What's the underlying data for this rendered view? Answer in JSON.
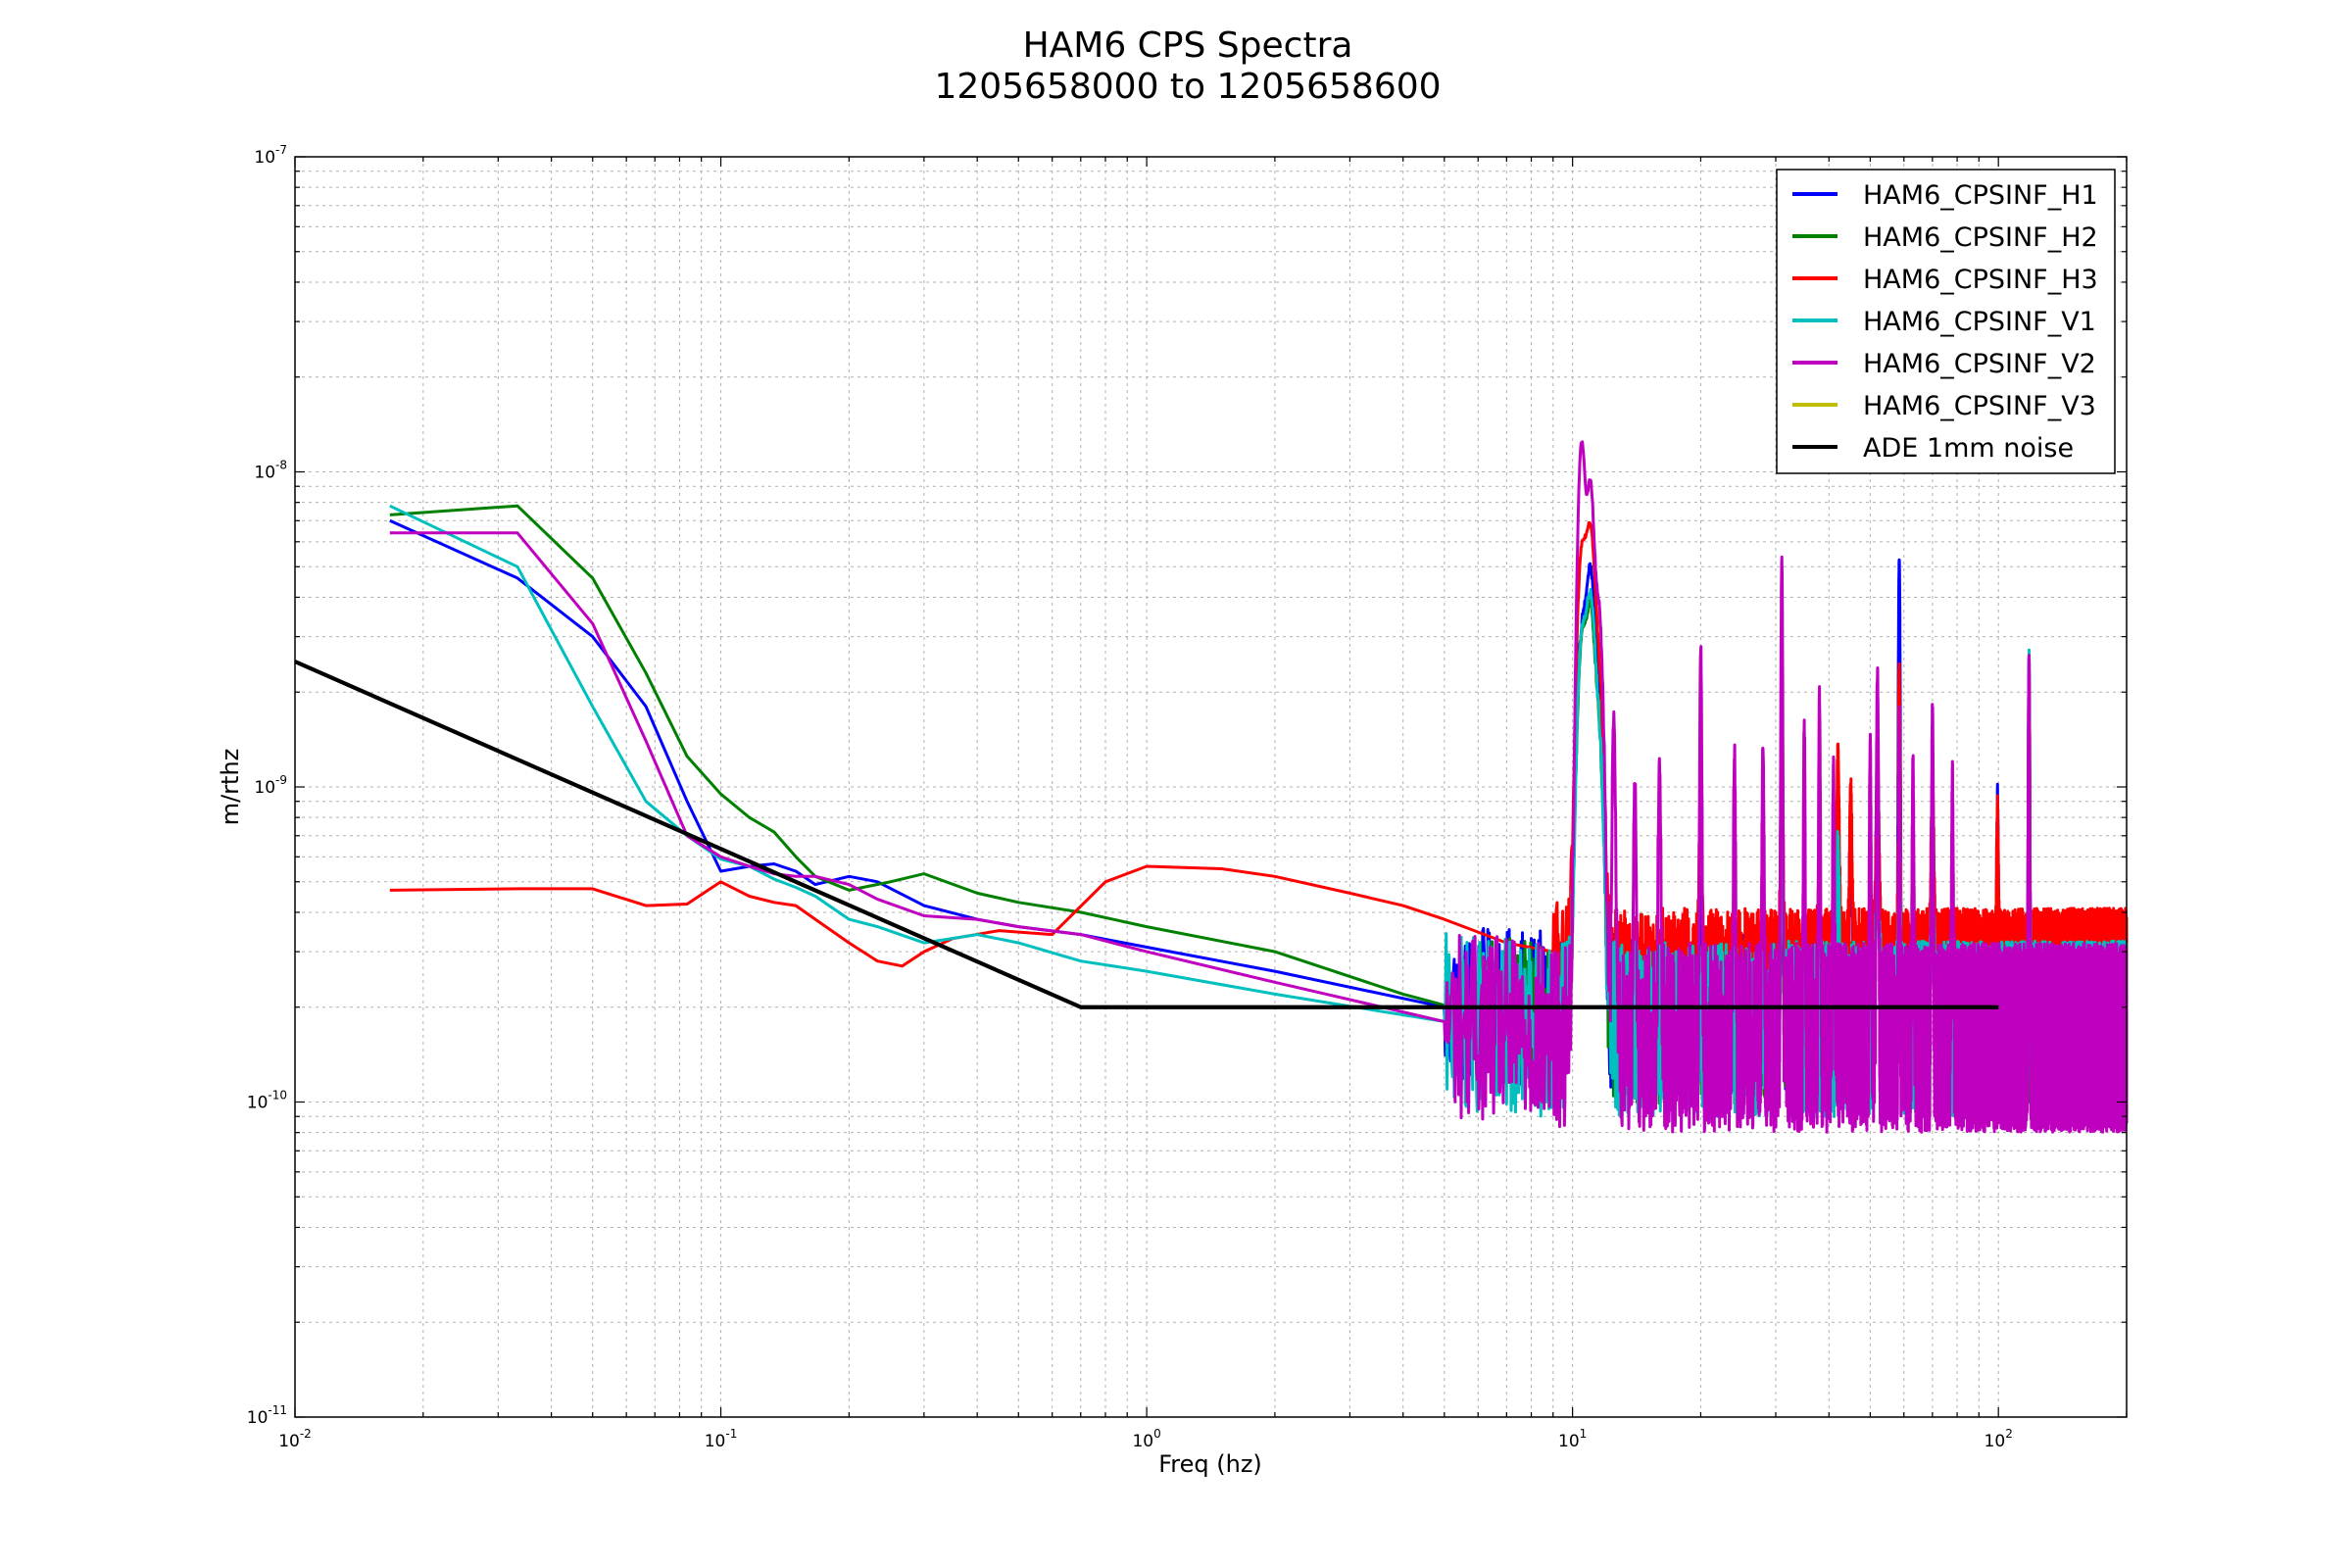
{
  "chart_data": {
    "type": "line",
    "title": "HAM6 CPS Spectra",
    "subtitle": "1205658000 to 1205658600",
    "xlabel": "Freq (hz)",
    "ylabel": "m/rthz",
    "xscale": "log",
    "yscale": "log",
    "xlim": [
      0.01,
      200
    ],
    "ylim": [
      1e-11,
      1e-07
    ],
    "grid": true,
    "legend": "top-right",
    "x_ticks": [
      {
        "base": "10",
        "exp": "-2",
        "value": 0.01
      },
      {
        "base": "10",
        "exp": "-1",
        "value": 0.1
      },
      {
        "base": "10",
        "exp": "0",
        "value": 1
      },
      {
        "base": "10",
        "exp": "1",
        "value": 10
      },
      {
        "base": "10",
        "exp": "2",
        "value": 100
      }
    ],
    "y_ticks": [
      {
        "base": "10",
        "exp": "-11",
        "value": 1e-11
      },
      {
        "base": "10",
        "exp": "-10",
        "value": 1e-10
      },
      {
        "base": "10",
        "exp": "-9",
        "value": 1e-09
      },
      {
        "base": "10",
        "exp": "-8",
        "value": 1e-08
      },
      {
        "base": "10",
        "exp": "-7",
        "value": 1e-07
      }
    ],
    "series": [
      {
        "name": "HAM6_CPSINF_H1",
        "color": "#0000ff",
        "base": 1.9e-10,
        "noise": 0.26,
        "h3like": false,
        "points": [
          [
            0.0167,
            7e-09
          ],
          [
            0.0333,
            4.6e-09
          ],
          [
            0.05,
            3e-09
          ],
          [
            0.0667,
            1.8e-09
          ],
          [
            0.0833,
            9e-10
          ],
          [
            0.1,
            5.4e-10
          ],
          [
            0.1167,
            5.6e-10
          ],
          [
            0.1333,
            5.7e-10
          ],
          [
            0.15,
            5.4e-10
          ],
          [
            0.1667,
            4.9e-10
          ],
          [
            0.2,
            5.2e-10
          ],
          [
            0.2333,
            5e-10
          ],
          [
            0.3,
            4.2e-10
          ],
          [
            0.4,
            3.8e-10
          ],
          [
            0.5,
            3.6e-10
          ],
          [
            0.7,
            3.4e-10
          ],
          [
            1.0,
            3.1e-10
          ],
          [
            2.0,
            2.6e-10
          ],
          [
            5.0,
            2e-10
          ]
        ],
        "peaks": [
          [
            10.5,
            2.6e-09,
            0.03
          ],
          [
            11.0,
            4.4e-09,
            0.03
          ],
          [
            11.5,
            1.5e-09,
            0.03
          ],
          [
            20.0,
            3e-10,
            0.01
          ],
          [
            31.0,
            4e-10,
            0.008
          ],
          [
            42.0,
            7e-10,
            0.008
          ],
          [
            45.0,
            6.5e-10,
            0.008
          ],
          [
            52.0,
            9e-10,
            0.01
          ],
          [
            58.5,
            5.1e-09,
            0.005
          ],
          [
            70.0,
            8e-10,
            0.008
          ],
          [
            99.5,
            7e-10,
            0.005
          ],
          [
            118,
            2.3e-09,
            0.004
          ]
        ]
      },
      {
        "name": "HAM6_CPSINF_H2",
        "color": "#008000",
        "base": 1.8e-10,
        "noise": 0.26,
        "h3like": false,
        "points": [
          [
            0.0167,
            7.3e-09
          ],
          [
            0.0333,
            7.8e-09
          ],
          [
            0.05,
            4.6e-09
          ],
          [
            0.0667,
            2.3e-09
          ],
          [
            0.0833,
            1.25e-09
          ],
          [
            0.1,
            9.5e-10
          ],
          [
            0.1167,
            8e-10
          ],
          [
            0.1333,
            7.2e-10
          ],
          [
            0.15,
            6e-10
          ],
          [
            0.1667,
            5.2e-10
          ],
          [
            0.2,
            4.7e-10
          ],
          [
            0.25,
            5e-10
          ],
          [
            0.3,
            5.3e-10
          ],
          [
            0.4,
            4.6e-10
          ],
          [
            0.5,
            4.3e-10
          ],
          [
            0.7,
            4e-10
          ],
          [
            1.0,
            3.6e-10
          ],
          [
            2.0,
            3e-10
          ],
          [
            4.0,
            2.2e-10
          ],
          [
            6.0,
            1.9e-10
          ]
        ],
        "peaks": [
          [
            10.5,
            2.5e-09,
            0.03
          ],
          [
            11.0,
            3.3e-09,
            0.03
          ],
          [
            11.5,
            1.3e-09,
            0.03
          ],
          [
            31.0,
            3.6e-10,
            0.008
          ],
          [
            52.0,
            6.5e-10,
            0.01
          ],
          [
            58.5,
            1.4e-09,
            0.005
          ],
          [
            70.0,
            6.5e-10,
            0.008
          ]
        ]
      },
      {
        "name": "HAM6_CPSINF_H3",
        "color": "#ff0000",
        "base": 2.6e-10,
        "noise": 0.2,
        "h3like": true,
        "points": [
          [
            0.0167,
            4.7e-10
          ],
          [
            0.0333,
            4.75e-10
          ],
          [
            0.05,
            4.75e-10
          ],
          [
            0.0667,
            4.2e-10
          ],
          [
            0.0833,
            4.25e-10
          ],
          [
            0.1,
            5e-10
          ],
          [
            0.1167,
            4.5e-10
          ],
          [
            0.1333,
            4.3e-10
          ],
          [
            0.15,
            4.2e-10
          ],
          [
            0.1667,
            3.8e-10
          ],
          [
            0.2,
            3.2e-10
          ],
          [
            0.2333,
            2.8e-10
          ],
          [
            0.2667,
            2.7e-10
          ],
          [
            0.3,
            3e-10
          ],
          [
            0.35,
            3.3e-10
          ],
          [
            0.45,
            3.5e-10
          ],
          [
            0.6,
            3.4e-10
          ],
          [
            0.8,
            5e-10
          ],
          [
            1.0,
            5.6e-10
          ],
          [
            1.5,
            5.5e-10
          ],
          [
            2.0,
            5.2e-10
          ],
          [
            3.0,
            4.6e-10
          ],
          [
            4.0,
            4.2e-10
          ],
          [
            5.0,
            3.8e-10
          ],
          [
            7.0,
            3.2e-10
          ],
          [
            9.0,
            3e-10
          ]
        ],
        "peaks": [
          [
            10.5,
            5e-09,
            0.03
          ],
          [
            11.0,
            6e-09,
            0.03
          ],
          [
            11.5,
            2e-09,
            0.03
          ],
          [
            20.0,
            5.5e-10,
            0.01
          ],
          [
            31.0,
            9e-10,
            0.008
          ],
          [
            38.0,
            4.8e-10,
            0.006
          ],
          [
            42.0,
            1e-09,
            0.008
          ],
          [
            45.0,
            7e-10,
            0.008
          ],
          [
            52.0,
            8e-10,
            0.01
          ],
          [
            58.5,
            2.1e-09,
            0.005
          ],
          [
            70.0,
            7e-10,
            0.008
          ],
          [
            99.5,
            5.5e-10,
            0.005
          ],
          [
            118,
            2.2e-09,
            0.004
          ]
        ]
      },
      {
        "name": "HAM6_CPSINF_V1",
        "color": "#00bfbf",
        "base": 1.7e-10,
        "noise": 0.28,
        "h3like": false,
        "points": [
          [
            0.0167,
            7.8e-09
          ],
          [
            0.0333,
            5e-09
          ],
          [
            0.05,
            1.8e-09
          ],
          [
            0.0667,
            9e-10
          ],
          [
            0.0833,
            7e-10
          ],
          [
            0.1,
            5.9e-10
          ],
          [
            0.1167,
            5.6e-10
          ],
          [
            0.1333,
            5.1e-10
          ],
          [
            0.15,
            4.8e-10
          ],
          [
            0.1667,
            4.5e-10
          ],
          [
            0.2,
            3.8e-10
          ],
          [
            0.2333,
            3.6e-10
          ],
          [
            0.3,
            3.2e-10
          ],
          [
            0.4,
            3.4e-10
          ],
          [
            0.5,
            3.2e-10
          ],
          [
            0.7,
            2.8e-10
          ],
          [
            1.0,
            2.6e-10
          ],
          [
            2.0,
            2.2e-10
          ],
          [
            5.0,
            1.8e-10
          ]
        ],
        "peaks": [
          [
            10.5,
            2.6e-09,
            0.03
          ],
          [
            11.0,
            3.6e-09,
            0.03
          ],
          [
            11.5,
            1.3e-09,
            0.03
          ],
          [
            31.0,
            6e-10,
            0.008
          ],
          [
            42.0,
            4.5e-10,
            0.008
          ],
          [
            52.0,
            4e-10,
            0.01
          ],
          [
            58.5,
            1.1e-09,
            0.005
          ],
          [
            70.0,
            3.5e-10,
            0.008
          ],
          [
            118,
            2.5e-09,
            0.004
          ]
        ]
      },
      {
        "name": "HAM6_CPSINF_V2",
        "color": "#bf00bf",
        "base": 1.6e-10,
        "noise": 0.3,
        "h3like": false,
        "points": [
          [
            0.0167,
            6.4e-09
          ],
          [
            0.0333,
            6.4e-09
          ],
          [
            0.05,
            3.3e-09
          ],
          [
            0.0667,
            1.4e-09
          ],
          [
            0.0833,
            7e-10
          ],
          [
            0.1,
            6e-10
          ],
          [
            0.1167,
            5.6e-10
          ],
          [
            0.1333,
            5.3e-10
          ],
          [
            0.15,
            5.2e-10
          ],
          [
            0.1667,
            5.2e-10
          ],
          [
            0.2,
            4.9e-10
          ],
          [
            0.2333,
            4.4e-10
          ],
          [
            0.3,
            3.9e-10
          ],
          [
            0.4,
            3.8e-10
          ],
          [
            0.5,
            3.6e-10
          ],
          [
            0.7,
            3.4e-10
          ],
          [
            1.0,
            3e-10
          ],
          [
            2.0,
            2.4e-10
          ],
          [
            5.0,
            1.8e-10
          ]
        ],
        "peaks": [
          [
            10.5,
            1.2e-08,
            0.025
          ],
          [
            11.0,
            8.5e-09,
            0.025
          ],
          [
            11.5,
            3.5e-09,
            0.03
          ],
          [
            12.5,
            1.5e-09,
            0.01
          ],
          [
            14.0,
            9e-10,
            0.008
          ],
          [
            16.0,
            1e-09,
            0.008
          ],
          [
            20.0,
            2.6e-09,
            0.006
          ],
          [
            24.0,
            1.1e-09,
            0.006
          ],
          [
            28.0,
            1.2e-09,
            0.006
          ],
          [
            31.0,
            5.1e-09,
            0.005
          ],
          [
            35.0,
            1.4e-09,
            0.005
          ],
          [
            38.0,
            1.8e-09,
            0.005
          ],
          [
            41.0,
            1e-09,
            0.005
          ],
          [
            50.0,
            1.2e-09,
            0.005
          ],
          [
            52.0,
            2.1e-09,
            0.006
          ],
          [
            58.5,
            1.5e-09,
            0.004
          ],
          [
            63.0,
            1e-09,
            0.005
          ],
          [
            70.0,
            1.6e-09,
            0.005
          ],
          [
            78.0,
            9e-10,
            0.005
          ],
          [
            118,
            2.4e-09,
            0.004
          ]
        ]
      },
      {
        "name": "HAM6_CPSINF_V3",
        "color": "#bfbf00",
        "base": 0,
        "noise": 0,
        "h3like": false,
        "points": [],
        "peaks": []
      },
      {
        "name": "ADE 1mm noise",
        "color": "#000000",
        "base": 0,
        "noise": 0,
        "h3like": false,
        "points": [
          [
            0.01,
            2.5e-09
          ],
          [
            0.7,
            2e-10
          ],
          [
            100,
            2e-10
          ]
        ],
        "peaks": []
      }
    ]
  }
}
